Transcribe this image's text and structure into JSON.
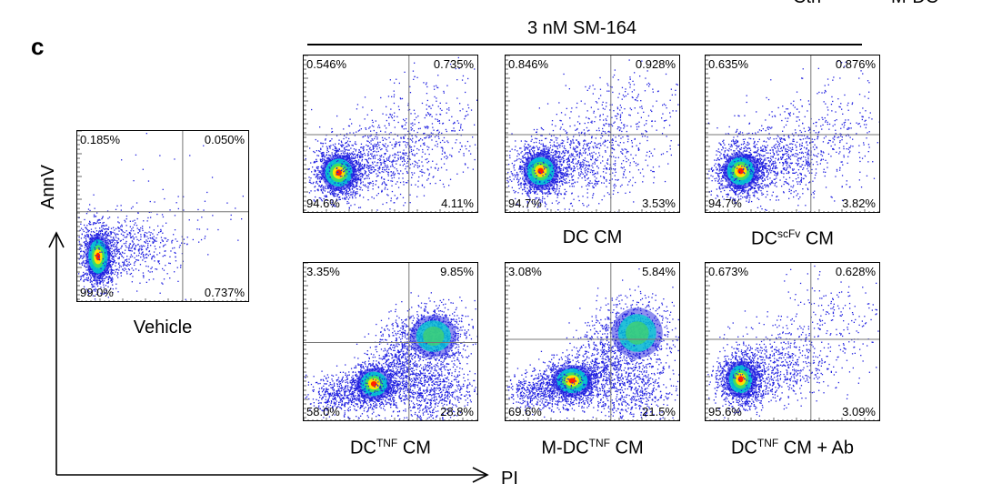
{
  "panel_letter": "c",
  "cut_top_text": [
    "Ctrl",
    "M-DC"
  ],
  "header": {
    "label": "3 nM SM-164"
  },
  "axes": {
    "y_label": "AnnV",
    "x_label": "PI"
  },
  "plots": [
    {
      "id": "vehicle",
      "label_parts": [
        "Vehicle"
      ],
      "quadrants": {
        "tl": "0.185%",
        "tr": "0.050%",
        "bl": "99.0%",
        "br": "0.737%"
      }
    },
    {
      "id": "sm164",
      "label_parts": [],
      "quadrants": {
        "tl": "0.546%",
        "tr": "0.735%",
        "bl": "94.6%",
        "br": "4.11%"
      }
    },
    {
      "id": "dc-cm",
      "label_parts": [
        "DC CM"
      ],
      "quadrants": {
        "tl": "0.846%",
        "tr": "0.928%",
        "bl": "94.7%",
        "br": "3.53%"
      }
    },
    {
      "id": "dc-scfv-cm",
      "label_parts": [
        "DC",
        "scFv",
        " CM"
      ],
      "quadrants": {
        "tl": "0.635%",
        "tr": "0.876%",
        "bl": "94.7%",
        "br": "3.82%"
      }
    },
    {
      "id": "dc-tnf-cm",
      "label_parts": [
        "DC",
        "TNF",
        " CM"
      ],
      "quadrants": {
        "tl": "3.35%",
        "tr": "9.85%",
        "bl": "58.0%",
        "br": "28.8%"
      }
    },
    {
      "id": "m-dc-tnf-cm",
      "label_parts": [
        "M-DC",
        "TNF",
        " CM"
      ],
      "quadrants": {
        "tl": "3.08%",
        "tr": "5.84%",
        "bl": "69.6%",
        "br": "21.5%"
      }
    },
    {
      "id": "dc-tnf-cm-ab",
      "label_parts": [
        "DC",
        "TNF",
        " CM + Ab"
      ],
      "quadrants": {
        "tl": "0.673%",
        "tr": "0.628%",
        "bl": "95.6%",
        "br": "3.09%"
      }
    }
  ],
  "colors": {
    "density_low": "#1f1fe0",
    "density_mid": "#00d0d0",
    "density_high": "#ffe000",
    "density_peak": "#ff2000"
  }
}
